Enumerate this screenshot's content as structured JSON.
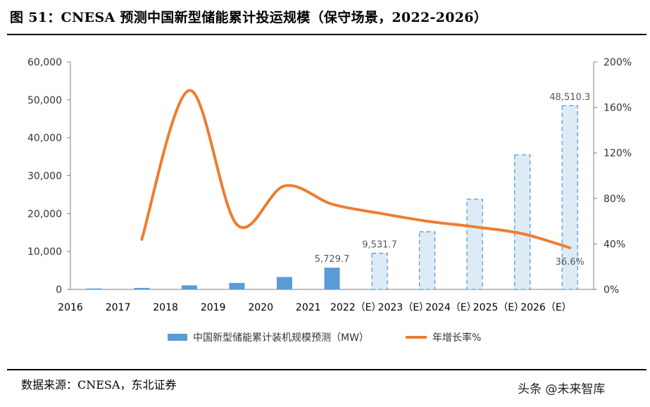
{
  "header": {
    "title": "图 51：CNESA 预测中国新型储能累计投运规模（保守场景，2022-2026）"
  },
  "footer": {
    "source": "数据来源：CNESA，东北证券",
    "watermark": "头条 @未来智库"
  },
  "chart_data": {
    "type": "bar",
    "title": "图 51：CNESA 预测中国新型储能累计投运规模（保守场景，2022-2026）",
    "categories": [
      "2016",
      "2017",
      "2018",
      "2019",
      "2020",
      "2021",
      "2022（E）",
      "2023（E）",
      "2024（E）",
      "2025（E）",
      "2026（E）"
    ],
    "series": [
      {
        "name": "中国新型储能累计装机规模预测（MW）",
        "type": "bar",
        "axis": "left",
        "values": [
          240,
          390,
          1070,
          1710,
          3270,
          5729.7,
          9531.7,
          15200,
          23800,
          35500,
          48510.3
        ],
        "color": "#5B9BD5",
        "forecast_color": "#DDEBF7",
        "forecast_from_index": 6
      },
      {
        "name": "年增长率%",
        "type": "line",
        "axis": "right",
        "values": [
          null,
          44,
          175,
          57,
          91,
          75,
          67,
          60,
          55,
          49,
          36.6
        ],
        "color": "#ED7D31"
      }
    ],
    "data_labels": [
      {
        "series": 0,
        "index": 5,
        "text": "5,729.7"
      },
      {
        "series": 0,
        "index": 6,
        "text": "9,531.7"
      },
      {
        "series": 0,
        "index": 10,
        "text": "48,510.3"
      },
      {
        "series": 1,
        "index": 10,
        "text": "36.6%"
      }
    ],
    "y_left": {
      "min": 0,
      "max": 60000,
      "ticks": [
        "0",
        "10,000",
        "20,000",
        "30,000",
        "40,000",
        "50,000",
        "60,000"
      ]
    },
    "y_right": {
      "min": 0,
      "max": 200,
      "ticks": [
        "0%",
        "40%",
        "80%",
        "120%",
        "160%",
        "200%"
      ]
    },
    "grid": false,
    "legend_position": "bottom"
  }
}
